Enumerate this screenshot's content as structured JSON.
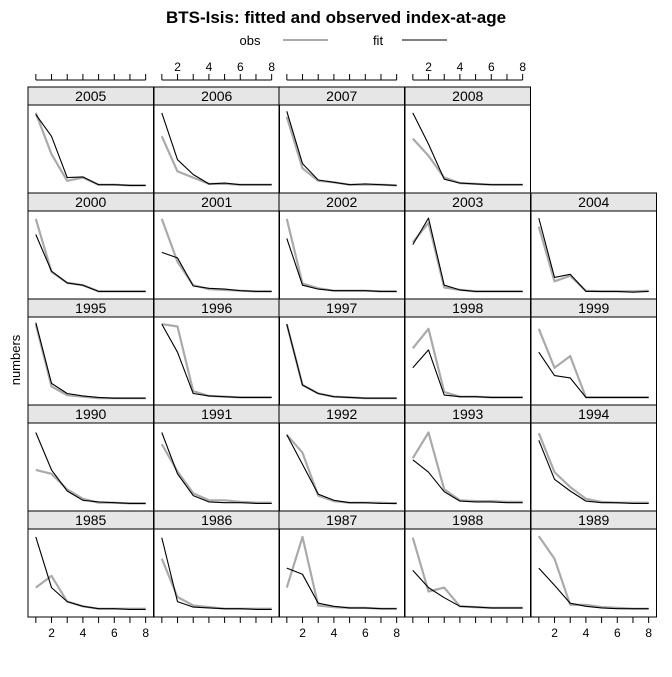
{
  "title": "BTS-Isis: fitted and observed index-at-age",
  "ylabel": "numbers",
  "legend": {
    "obs": {
      "label": "obs",
      "color": "#aaaaaa"
    },
    "fit": {
      "label": "fit",
      "color": "#000000"
    }
  },
  "x_ticks": [
    2,
    4,
    6,
    8
  ],
  "colors": {
    "strip": "#e6e6e6",
    "border": "#000000",
    "obs": "#aaaaaa",
    "fit": "#000000"
  },
  "chart_data": {
    "type": "line",
    "layout": "lattice 5x5 panels by year",
    "x": [
      1,
      2,
      3,
      4,
      5,
      6,
      7,
      8
    ],
    "xlim": [
      0.5,
      8.5
    ],
    "ylim_each_panel": [
      0,
      1
    ],
    "series_names": [
      "obs",
      "fit"
    ],
    "panels": [
      {
        "year": "2005",
        "obs": [
          0.95,
          0.42,
          0.08,
          0.12,
          0.03,
          0.03,
          0.02,
          0.02
        ],
        "fit": [
          0.93,
          0.65,
          0.12,
          0.13,
          0.03,
          0.03,
          0.02,
          0.02
        ]
      },
      {
        "year": "2006",
        "obs": [
          0.65,
          0.2,
          0.12,
          0.04,
          0.04,
          0.03,
          0.03,
          0.03
        ],
        "fit": [
          0.95,
          0.35,
          0.16,
          0.04,
          0.05,
          0.03,
          0.03,
          0.03
        ]
      },
      {
        "year": "2007",
        "obs": [
          0.9,
          0.24,
          0.08,
          0.06,
          0.03,
          0.03,
          0.03,
          0.02
        ],
        "fit": [
          0.97,
          0.3,
          0.09,
          0.06,
          0.03,
          0.04,
          0.03,
          0.02
        ]
      },
      {
        "year": "2008",
        "obs": [
          0.62,
          0.4,
          0.12,
          0.05,
          0.04,
          0.03,
          0.03,
          0.03
        ],
        "fit": [
          0.95,
          0.55,
          0.1,
          0.05,
          0.04,
          0.03,
          0.03,
          0.03
        ]
      },
      {
        "year": "2000",
        "obs": [
          0.95,
          0.27,
          0.13,
          0.1,
          0.02,
          0.02,
          0.02,
          0.02
        ],
        "fit": [
          0.75,
          0.28,
          0.13,
          0.1,
          0.02,
          0.02,
          0.02,
          0.02
        ]
      },
      {
        "year": "2001",
        "obs": [
          0.95,
          0.4,
          0.1,
          0.05,
          0.04,
          0.03,
          0.02,
          0.02
        ],
        "fit": [
          0.52,
          0.45,
          0.09,
          0.06,
          0.05,
          0.03,
          0.02,
          0.02
        ]
      },
      {
        "year": "2002",
        "obs": [
          0.95,
          0.12,
          0.06,
          0.03,
          0.03,
          0.03,
          0.02,
          0.02
        ],
        "fit": [
          0.7,
          0.1,
          0.05,
          0.03,
          0.03,
          0.03,
          0.02,
          0.02
        ]
      },
      {
        "year": "2003",
        "obs": [
          0.65,
          0.9,
          0.07,
          0.04,
          0.02,
          0.02,
          0.02,
          0.02
        ],
        "fit": [
          0.62,
          0.96,
          0.1,
          0.04,
          0.02,
          0.02,
          0.02,
          0.02
        ]
      },
      {
        "year": "2004",
        "obs": [
          0.85,
          0.15,
          0.22,
          0.03,
          0.02,
          0.02,
          0.02,
          0.03
        ],
        "fit": [
          0.96,
          0.2,
          0.24,
          0.02,
          0.02,
          0.02,
          0.01,
          0.02
        ]
      },
      {
        "year": "1995",
        "obs": [
          0.96,
          0.16,
          0.05,
          0.03,
          0.01,
          0.01,
          0.01,
          0.01
        ],
        "fit": [
          0.98,
          0.2,
          0.07,
          0.04,
          0.02,
          0.01,
          0.01,
          0.01
        ]
      },
      {
        "year": "1996",
        "obs": [
          0.96,
          0.93,
          0.1,
          0.04,
          0.03,
          0.02,
          0.02,
          0.02
        ],
        "fit": [
          0.96,
          0.6,
          0.07,
          0.04,
          0.03,
          0.02,
          0.02,
          0.02
        ]
      },
      {
        "year": "1997",
        "obs": [
          0.96,
          0.18,
          0.07,
          0.03,
          0.02,
          0.01,
          0.01,
          0.01
        ],
        "fit": [
          0.96,
          0.18,
          0.07,
          0.03,
          0.02,
          0.01,
          0.01,
          0.01
        ]
      },
      {
        "year": "1998",
        "obs": [
          0.65,
          0.9,
          0.09,
          0.03,
          0.03,
          0.02,
          0.02,
          0.02
        ],
        "fit": [
          0.4,
          0.63,
          0.05,
          0.03,
          0.03,
          0.02,
          0.02,
          0.02
        ]
      },
      {
        "year": "1999",
        "obs": [
          0.9,
          0.4,
          0.55,
          0.02,
          0.02,
          0.02,
          0.02,
          0.02
        ],
        "fit": [
          0.6,
          0.3,
          0.27,
          0.02,
          0.02,
          0.02,
          0.02,
          0.02
        ]
      },
      {
        "year": "1990",
        "obs": [
          0.45,
          0.4,
          0.2,
          0.08,
          0.03,
          0.03,
          0.02,
          0.02
        ],
        "fit": [
          0.93,
          0.45,
          0.18,
          0.06,
          0.04,
          0.03,
          0.02,
          0.02
        ]
      },
      {
        "year": "1991",
        "obs": [
          0.78,
          0.43,
          0.15,
          0.06,
          0.06,
          0.04,
          0.03,
          0.03
        ],
        "fit": [
          0.93,
          0.4,
          0.12,
          0.04,
          0.03,
          0.03,
          0.02,
          0.02
        ]
      },
      {
        "year": "1992",
        "obs": [
          0.9,
          0.67,
          0.12,
          0.05,
          0.03,
          0.03,
          0.03,
          0.02
        ],
        "fit": [
          0.9,
          0.52,
          0.14,
          0.06,
          0.03,
          0.03,
          0.02,
          0.02
        ]
      },
      {
        "year": "1993",
        "obs": [
          0.6,
          0.93,
          0.2,
          0.06,
          0.05,
          0.05,
          0.04,
          0.04
        ],
        "fit": [
          0.58,
          0.42,
          0.17,
          0.05,
          0.04,
          0.04,
          0.03,
          0.03
        ]
      },
      {
        "year": "1994",
        "obs": [
          0.92,
          0.42,
          0.23,
          0.08,
          0.04,
          0.03,
          0.03,
          0.03
        ],
        "fit": [
          0.83,
          0.33,
          0.18,
          0.05,
          0.03,
          0.03,
          0.02,
          0.02
        ]
      },
      {
        "year": "1985",
        "obs": [
          0.3,
          0.45,
          0.12,
          0.06,
          0.03,
          0.03,
          0.03,
          0.03
        ],
        "fit": [
          0.95,
          0.3,
          0.12,
          0.06,
          0.03,
          0.03,
          0.02,
          0.02
        ]
      },
      {
        "year": "1986",
        "obs": [
          0.67,
          0.18,
          0.07,
          0.05,
          0.03,
          0.03,
          0.03,
          0.03
        ],
        "fit": [
          0.94,
          0.12,
          0.05,
          0.04,
          0.03,
          0.03,
          0.02,
          0.02
        ]
      },
      {
        "year": "1987",
        "obs": [
          0.3,
          0.95,
          0.07,
          0.05,
          0.04,
          0.04,
          0.03,
          0.03
        ],
        "fit": [
          0.55,
          0.47,
          0.1,
          0.06,
          0.04,
          0.04,
          0.03,
          0.03
        ]
      },
      {
        "year": "1988",
        "obs": [
          0.94,
          0.25,
          0.3,
          0.06,
          0.05,
          0.04,
          0.04,
          0.04
        ],
        "fit": [
          0.52,
          0.3,
          0.17,
          0.06,
          0.05,
          0.04,
          0.04,
          0.04
        ]
      },
      {
        "year": "1989",
        "obs": [
          0.96,
          0.67,
          0.08,
          0.08,
          0.05,
          0.04,
          0.03,
          0.03
        ],
        "fit": [
          0.55,
          0.33,
          0.1,
          0.06,
          0.04,
          0.03,
          0.03,
          0.03
        ]
      }
    ]
  }
}
